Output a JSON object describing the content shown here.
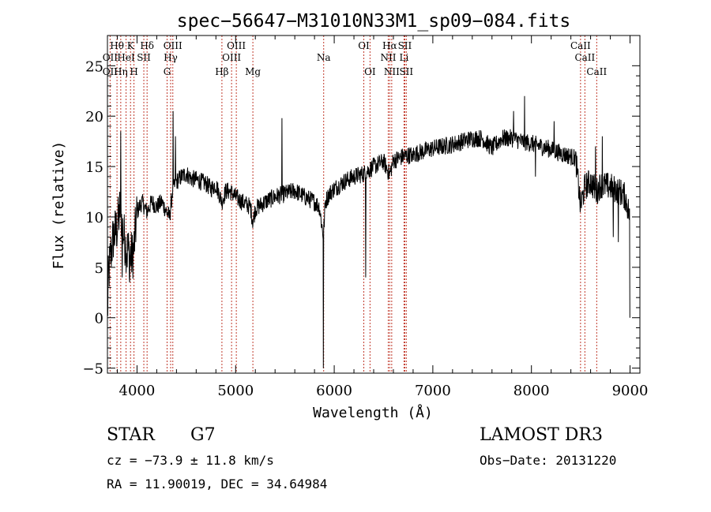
{
  "chart_data": {
    "type": "line",
    "title": "spec−56647−M31010N33M1_sp09−084.fits",
    "xlabel": "Wavelength (Å)",
    "ylabel": "Flux (relative)",
    "xlim": [
      3700,
      9100
    ],
    "ylim": [
      -5.5,
      28
    ],
    "x_ticks": [
      4000,
      5000,
      6000,
      7000,
      8000,
      9000
    ],
    "x_tick_labels": [
      "4000",
      "5000",
      "6000",
      "7000",
      "8000",
      "9000"
    ],
    "y_ticks": [
      -5,
      0,
      5,
      10,
      15,
      20,
      25
    ],
    "y_tick_labels": [
      "−5",
      "0",
      "5",
      "10",
      "15",
      "20",
      "25"
    ],
    "series_anchor_points": [
      [
        3700,
        0
      ],
      [
        3710,
        4
      ],
      [
        3730,
        6
      ],
      [
        3760,
        8
      ],
      [
        3800,
        9
      ],
      [
        3830,
        11
      ],
      [
        3860,
        8.5
      ],
      [
        3890,
        7
      ],
      [
        3920,
        6.5
      ],
      [
        3950,
        6
      ],
      [
        3970,
        7
      ],
      [
        4000,
        10.5
      ],
      [
        4050,
        11.5
      ],
      [
        4100,
        10.5
      ],
      [
        4150,
        11.5
      ],
      [
        4200,
        11
      ],
      [
        4250,
        11.5
      ],
      [
        4300,
        10.5
      ],
      [
        4330,
        10
      ],
      [
        4360,
        12.5
      ],
      [
        4400,
        13.5
      ],
      [
        4450,
        14
      ],
      [
        4500,
        14.3
      ],
      [
        4550,
        13.8
      ],
      [
        4600,
        13.7
      ],
      [
        4700,
        13.3
      ],
      [
        4750,
        12.8
      ],
      [
        4800,
        13.2
      ],
      [
        4861,
        11.5
      ],
      [
        4900,
        12.6
      ],
      [
        4950,
        12.5
      ],
      [
        5000,
        12
      ],
      [
        5050,
        11.6
      ],
      [
        5100,
        11.3
      ],
      [
        5150,
        11
      ],
      [
        5175,
        9.5
      ],
      [
        5200,
        10.8
      ],
      [
        5300,
        11.5
      ],
      [
        5400,
        12
      ],
      [
        5500,
        12.3
      ],
      [
        5600,
        12.6
      ],
      [
        5700,
        12
      ],
      [
        5800,
        11.5
      ],
      [
        5850,
        11
      ],
      [
        5890,
        8
      ],
      [
        5910,
        11.5
      ],
      [
        5950,
        12.3
      ],
      [
        6000,
        12.8
      ],
      [
        6100,
        13.5
      ],
      [
        6200,
        14
      ],
      [
        6300,
        14.3
      ],
      [
        6400,
        15
      ],
      [
        6500,
        15.5
      ],
      [
        6563,
        14.2
      ],
      [
        6600,
        15.6
      ],
      [
        6700,
        16
      ],
      [
        6800,
        16.2
      ],
      [
        6900,
        16.5
      ],
      [
        7000,
        16.8
      ],
      [
        7100,
        17
      ],
      [
        7200,
        17.2
      ],
      [
        7300,
        17.5
      ],
      [
        7400,
        17.8
      ],
      [
        7500,
        17.8
      ],
      [
        7600,
        16.8
      ],
      [
        7700,
        17.8
      ],
      [
        7800,
        17.8
      ],
      [
        7900,
        17.5
      ],
      [
        8000,
        17.3
      ],
      [
        8100,
        17
      ],
      [
        8200,
        16.7
      ],
      [
        8300,
        16.3
      ],
      [
        8400,
        16
      ],
      [
        8450,
        15.8
      ],
      [
        8498,
        11
      ],
      [
        8542,
        13
      ],
      [
        8600,
        13.5
      ],
      [
        8662,
        12.5
      ],
      [
        8700,
        13.2
      ],
      [
        8800,
        13
      ],
      [
        8900,
        12.5
      ],
      [
        8950,
        12
      ],
      [
        9000,
        10
      ]
    ],
    "noise_amplitude": 0.9,
    "spikes": [
      [
        3835,
        18.5
      ],
      [
        3850,
        4
      ],
      [
        3900,
        5
      ],
      [
        3925,
        3.5
      ],
      [
        4365,
        20.5
      ],
      [
        4390,
        18
      ],
      [
        5470,
        19.8
      ],
      [
        5890,
        -5
      ],
      [
        6320,
        4
      ],
      [
        6790,
        15.5
      ],
      [
        7820,
        20.5
      ],
      [
        7930,
        22
      ],
      [
        8040,
        14
      ],
      [
        8230,
        19.5
      ],
      [
        8650,
        17
      ],
      [
        8720,
        18
      ],
      [
        8830,
        8
      ],
      [
        8880,
        7.5
      ],
      [
        9000,
        10.5
      ],
      [
        9002,
        0
      ]
    ],
    "line_markers": [
      {
        "label": "Hθ",
        "x": 3797,
        "row": 1
      },
      {
        "label": "OII",
        "x": 3727,
        "row": 2
      },
      {
        "label": "OII",
        "x": 3727,
        "row": 3
      },
      {
        "label": "Hη",
        "x": 3835,
        "row": 3
      },
      {
        "label": "HeI",
        "x": 3889,
        "row": 2
      },
      {
        "label": "K",
        "x": 3934,
        "row": 1
      },
      {
        "label": "H",
        "x": 3969,
        "row": 3
      },
      {
        "label": "Hδ",
        "x": 4102,
        "row": 1
      },
      {
        "label": "SII",
        "x": 4069,
        "row": 2
      },
      {
        "label": "OIII",
        "x": 4363,
        "row": 1
      },
      {
        "label": "Hγ",
        "x": 4341,
        "row": 2
      },
      {
        "label": "G",
        "x": 4305,
        "row": 3
      },
      {
        "label": "OIII",
        "x": 5007,
        "row": 1
      },
      {
        "label": "OIII",
        "x": 4959,
        "row": 2
      },
      {
        "label": "Hβ",
        "x": 4861,
        "row": 3
      },
      {
        "label": "Mg",
        "x": 5175,
        "row": 3
      },
      {
        "label": "Na",
        "x": 5893,
        "row": 2
      },
      {
        "label": "OI",
        "x": 6300,
        "row": 1
      },
      {
        "label": "OI",
        "x": 6363,
        "row": 3
      },
      {
        "label": "Hα",
        "x": 6563,
        "row": 1
      },
      {
        "label": "NII",
        "x": 6548,
        "row": 2
      },
      {
        "label": "NII",
        "x": 6583,
        "row": 3
      },
      {
        "label": "SII",
        "x": 6716,
        "row": 1
      },
      {
        "label": "Li",
        "x": 6708,
        "row": 2
      },
      {
        "label": "SII",
        "x": 6731,
        "row": 3
      },
      {
        "label": "CaII",
        "x": 8498,
        "row": 1
      },
      {
        "label": "CaII",
        "x": 8542,
        "row": 2
      },
      {
        "label": "CaII",
        "x": 8662,
        "row": 3
      }
    ],
    "marker_color": "#c0392b",
    "line_color": "#000000"
  },
  "info": {
    "object_class": "STAR",
    "subclass": "G7",
    "survey": "LAMOST DR3",
    "redshift": "cz = −73.9 ± 11.8 km/s",
    "obs_date": "Obs−Date: 20131220",
    "coords": "RA =  11.90019, DEC =  34.64984"
  }
}
